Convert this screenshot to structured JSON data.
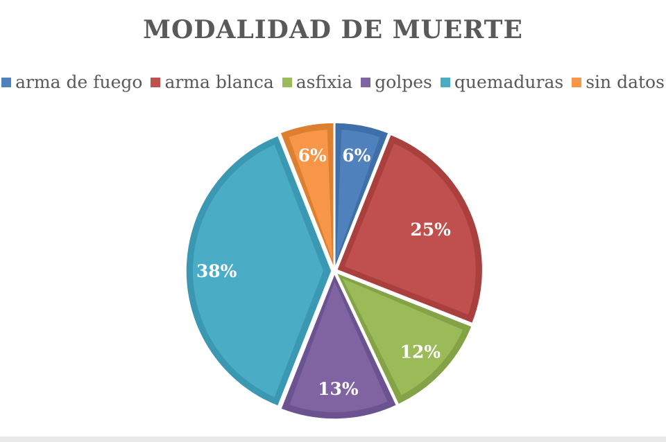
{
  "chart_data": {
    "type": "pie",
    "title": "MODALIDAD DE MUERTE",
    "legend_position": "top",
    "categories": [
      "arma de fuego",
      "arma blanca",
      "asfixia",
      "golpes",
      "quemaduras",
      "sin datos"
    ],
    "values": [
      6,
      25,
      12,
      13,
      38,
      6
    ],
    "labels": [
      "6%",
      "25%",
      "12%",
      "13%",
      "38%",
      "6%"
    ],
    "colors": [
      "#4f81bd",
      "#c0504d",
      "#9bbb59",
      "#8064a2",
      "#4bacc6",
      "#f79646"
    ],
    "border_colors": [
      "#3f6fa8",
      "#a9403d",
      "#84a347",
      "#6b5290",
      "#3a98b2",
      "#dd7f30"
    ]
  }
}
